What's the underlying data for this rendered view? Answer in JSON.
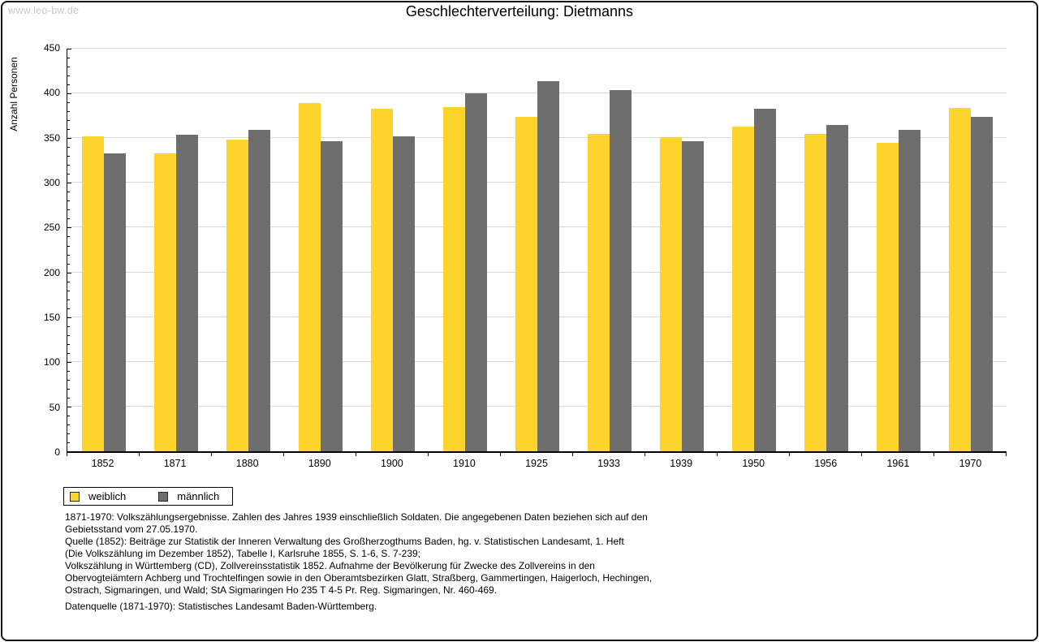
{
  "watermark": "www.leo-bw.de",
  "chart": {
    "title": "Geschlechterverteilung: Dietmanns",
    "y_axis_label": "Anzahl Personen"
  },
  "legend": {
    "items": [
      {
        "label": "weiblich",
        "color": "#fcd42c"
      },
      {
        "label": "männlich",
        "color": "#6e6e6e"
      }
    ]
  },
  "chart_data": {
    "type": "bar",
    "title": "Geschlechterverteilung: Dietmanns",
    "xlabel": "",
    "ylabel": "Anzahl Personen",
    "categories": [
      "1852",
      "1871",
      "1880",
      "1890",
      "1900",
      "1910",
      "1925",
      "1933",
      "1939",
      "1950",
      "1956",
      "1961",
      "1970"
    ],
    "series": [
      {
        "name": "weiblich",
        "color": "#fcd42c",
        "values": [
          352,
          333,
          348,
          389,
          383,
          385,
          374,
          355,
          351,
          363,
          355,
          345,
          384
        ]
      },
      {
        "name": "männlich",
        "color": "#6e6e6e",
        "values": [
          333,
          354,
          359,
          347,
          352,
          400,
          414,
          404,
          347,
          383,
          365,
          359,
          374
        ]
      }
    ],
    "ylim": [
      0,
      450
    ],
    "ytick_step": 50,
    "y_minor_tick_step": 10,
    "grid": true,
    "gridline_color": "#d9d9d9",
    "legend_position": "below-left"
  },
  "footnotes": {
    "lines": [
      "1871-1970: Volkszählungsergebnisse. Zahlen des Jahres 1939 einschließlich Soldaten. Die angegebenen Daten beziehen sich auf den",
      "Gebietsstand vom 27.05.1970.",
      "Quelle (1852): Beiträge zur Statistik der Inneren Verwaltung des Großherzogthums Baden, hg. v. Statistischen Landesamt, 1. Heft",
      "(Die Volkszählung im Dezember 1852), Tabelle I, Karlsruhe 1855, S. 1-6, S. 7-239;",
      "Volkszählung in Württemberg (CD), Zollvereinsstatistik 1852. Aufnahme der Bevölkerung für Zwecke des Zollvereins in den",
      "Obervogteiämtern Achberg und Trochtelfingen sowie in den Oberamtsbezirken Glatt, Straßberg, Gammertingen, Haigerloch, Hechingen,",
      "Ostrach, Sigmaringen, und Wald; StA Sigmaringen Ho 235 T 4-5 Pr. Reg. Sigmaringen, Nr. 460-469."
    ],
    "datasource": "Datenquelle (1871-1970): Statistisches Landesamt Baden-Württemberg."
  },
  "colors": {
    "watermark": "#c9c9c9",
    "axis": "#000000",
    "gridline": "#d9d9d9"
  }
}
